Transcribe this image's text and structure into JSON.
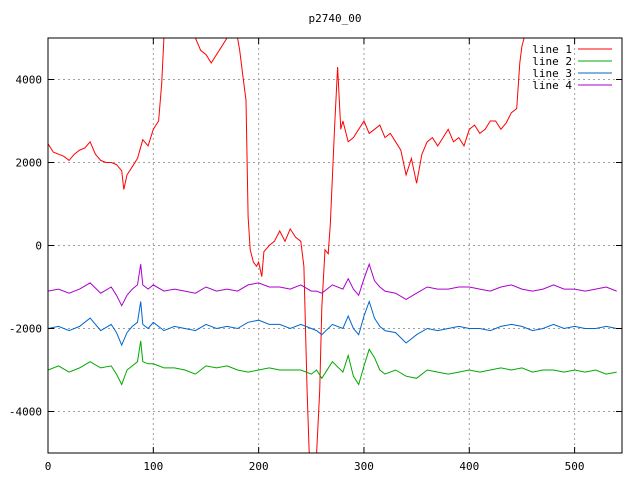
{
  "chart_data": {
    "type": "line",
    "title": "p2740_00",
    "xlabel": "",
    "ylabel": "",
    "xlim": [
      0,
      545
    ],
    "ylim": [
      -5000,
      5000
    ],
    "xticks": [
      0,
      100,
      200,
      300,
      400,
      500
    ],
    "yticks": [
      -4000,
      -2000,
      0,
      2000,
      4000
    ],
    "grid": true,
    "legend_position": "top-right",
    "series": [
      {
        "name": "line 1",
        "color": "#ff0000",
        "points": [
          [
            0,
            2450
          ],
          [
            5,
            2250
          ],
          [
            10,
            2200
          ],
          [
            15,
            2150
          ],
          [
            20,
            2050
          ],
          [
            25,
            2200
          ],
          [
            30,
            2300
          ],
          [
            35,
            2350
          ],
          [
            40,
            2500
          ],
          [
            45,
            2200
          ],
          [
            50,
            2050
          ],
          [
            55,
            2000
          ],
          [
            60,
            2000
          ],
          [
            65,
            1950
          ],
          [
            70,
            1800
          ],
          [
            72,
            1350
          ],
          [
            75,
            1700
          ],
          [
            80,
            1900
          ],
          [
            85,
            2100
          ],
          [
            90,
            2550
          ],
          [
            95,
            2400
          ],
          [
            100,
            2800
          ],
          [
            105,
            3000
          ],
          [
            108,
            3900
          ],
          [
            110,
            5000
          ],
          [
            140,
            5000
          ],
          [
            145,
            4700
          ],
          [
            150,
            4600
          ],
          [
            155,
            4400
          ],
          [
            160,
            4600
          ],
          [
            165,
            4800
          ],
          [
            170,
            5000
          ],
          [
            180,
            5000
          ],
          [
            182,
            4700
          ],
          [
            185,
            4100
          ],
          [
            188,
            3500
          ],
          [
            190,
            700
          ],
          [
            192,
            -100
          ],
          [
            195,
            -400
          ],
          [
            198,
            -500
          ],
          [
            200,
            -400
          ],
          [
            203,
            -750
          ],
          [
            205,
            -150
          ],
          [
            210,
            0
          ],
          [
            215,
            100
          ],
          [
            220,
            350
          ],
          [
            225,
            100
          ],
          [
            230,
            400
          ],
          [
            235,
            200
          ],
          [
            240,
            100
          ],
          [
            243,
            -500
          ],
          [
            246,
            -3500
          ],
          [
            248,
            -5000
          ],
          [
            255,
            -5000
          ],
          [
            258,
            -3500
          ],
          [
            260,
            -1500
          ],
          [
            263,
            -100
          ],
          [
            266,
            -200
          ],
          [
            268,
            500
          ],
          [
            272,
            2800
          ],
          [
            275,
            4300
          ],
          [
            278,
            2800
          ],
          [
            280,
            3000
          ],
          [
            285,
            2500
          ],
          [
            290,
            2600
          ],
          [
            295,
            2800
          ],
          [
            300,
            3000
          ],
          [
            305,
            2700
          ],
          [
            310,
            2800
          ],
          [
            315,
            2900
          ],
          [
            320,
            2600
          ],
          [
            325,
            2700
          ],
          [
            330,
            2500
          ],
          [
            335,
            2300
          ],
          [
            340,
            1700
          ],
          [
            345,
            2100
          ],
          [
            350,
            1500
          ],
          [
            355,
            2200
          ],
          [
            360,
            2500
          ],
          [
            365,
            2600
          ],
          [
            370,
            2400
          ],
          [
            375,
            2600
          ],
          [
            380,
            2800
          ],
          [
            385,
            2500
          ],
          [
            390,
            2600
          ],
          [
            395,
            2400
          ],
          [
            400,
            2800
          ],
          [
            405,
            2900
          ],
          [
            410,
            2700
          ],
          [
            415,
            2800
          ],
          [
            420,
            3000
          ],
          [
            425,
            3000
          ],
          [
            430,
            2800
          ],
          [
            435,
            2950
          ],
          [
            440,
            3200
          ],
          [
            445,
            3300
          ],
          [
            448,
            4400
          ],
          [
            450,
            4800
          ],
          [
            452,
            5000
          ],
          [
            545,
            5000
          ]
        ]
      },
      {
        "name": "line 2",
        "color": "#00aa00",
        "points": [
          [
            0,
            -3000
          ],
          [
            10,
            -2900
          ],
          [
            20,
            -3050
          ],
          [
            30,
            -2950
          ],
          [
            40,
            -2800
          ],
          [
            50,
            -2950
          ],
          [
            60,
            -2900
          ],
          [
            65,
            -3100
          ],
          [
            70,
            -3350
          ],
          [
            75,
            -3000
          ],
          [
            80,
            -2900
          ],
          [
            85,
            -2800
          ],
          [
            88,
            -2300
          ],
          [
            90,
            -2800
          ],
          [
            95,
            -2850
          ],
          [
            100,
            -2850
          ],
          [
            110,
            -2950
          ],
          [
            120,
            -2950
          ],
          [
            130,
            -3000
          ],
          [
            140,
            -3100
          ],
          [
            150,
            -2900
          ],
          [
            160,
            -2950
          ],
          [
            170,
            -2900
          ],
          [
            180,
            -3000
          ],
          [
            190,
            -3050
          ],
          [
            200,
            -3000
          ],
          [
            210,
            -2950
          ],
          [
            220,
            -3000
          ],
          [
            230,
            -3000
          ],
          [
            240,
            -3000
          ],
          [
            250,
            -3100
          ],
          [
            255,
            -3000
          ],
          [
            260,
            -3200
          ],
          [
            270,
            -2800
          ],
          [
            280,
            -3050
          ],
          [
            285,
            -2650
          ],
          [
            290,
            -3150
          ],
          [
            295,
            -3350
          ],
          [
            300,
            -2900
          ],
          [
            305,
            -2500
          ],
          [
            310,
            -2700
          ],
          [
            315,
            -3000
          ],
          [
            320,
            -3100
          ],
          [
            330,
            -3000
          ],
          [
            340,
            -3150
          ],
          [
            350,
            -3200
          ],
          [
            360,
            -3000
          ],
          [
            370,
            -3050
          ],
          [
            380,
            -3100
          ],
          [
            390,
            -3050
          ],
          [
            400,
            -3000
          ],
          [
            410,
            -3050
          ],
          [
            420,
            -3000
          ],
          [
            430,
            -2950
          ],
          [
            440,
            -3000
          ],
          [
            450,
            -2950
          ],
          [
            460,
            -3050
          ],
          [
            470,
            -3000
          ],
          [
            480,
            -3000
          ],
          [
            490,
            -3050
          ],
          [
            500,
            -3000
          ],
          [
            510,
            -3050
          ],
          [
            520,
            -3000
          ],
          [
            530,
            -3100
          ],
          [
            540,
            -3050
          ]
        ]
      },
      {
        "name": "line 3",
        "color": "#0066cc",
        "points": [
          [
            0,
            -2000
          ],
          [
            10,
            -1950
          ],
          [
            20,
            -2050
          ],
          [
            30,
            -1950
          ],
          [
            40,
            -1750
          ],
          [
            50,
            -2050
          ],
          [
            60,
            -1900
          ],
          [
            65,
            -2100
          ],
          [
            70,
            -2400
          ],
          [
            75,
            -2100
          ],
          [
            80,
            -1950
          ],
          [
            85,
            -1850
          ],
          [
            88,
            -1350
          ],
          [
            90,
            -1900
          ],
          [
            95,
            -2000
          ],
          [
            100,
            -1850
          ],
          [
            110,
            -2050
          ],
          [
            120,
            -1950
          ],
          [
            130,
            -2000
          ],
          [
            140,
            -2050
          ],
          [
            150,
            -1900
          ],
          [
            160,
            -2000
          ],
          [
            170,
            -1950
          ],
          [
            180,
            -2000
          ],
          [
            190,
            -1850
          ],
          [
            200,
            -1800
          ],
          [
            210,
            -1900
          ],
          [
            220,
            -1900
          ],
          [
            230,
            -2000
          ],
          [
            240,
            -1900
          ],
          [
            250,
            -2000
          ],
          [
            255,
            -2050
          ],
          [
            260,
            -2150
          ],
          [
            270,
            -1900
          ],
          [
            280,
            -2000
          ],
          [
            285,
            -1700
          ],
          [
            290,
            -2000
          ],
          [
            295,
            -2150
          ],
          [
            300,
            -1700
          ],
          [
            305,
            -1350
          ],
          [
            310,
            -1750
          ],
          [
            315,
            -1950
          ],
          [
            320,
            -2050
          ],
          [
            330,
            -2100
          ],
          [
            340,
            -2350
          ],
          [
            350,
            -2150
          ],
          [
            360,
            -2000
          ],
          [
            370,
            -2050
          ],
          [
            380,
            -2000
          ],
          [
            390,
            -1950
          ],
          [
            400,
            -2000
          ],
          [
            410,
            -2000
          ],
          [
            420,
            -2050
          ],
          [
            430,
            -1950
          ],
          [
            440,
            -1900
          ],
          [
            450,
            -1950
          ],
          [
            460,
            -2050
          ],
          [
            470,
            -2000
          ],
          [
            480,
            -1900
          ],
          [
            490,
            -2000
          ],
          [
            500,
            -1950
          ],
          [
            510,
            -2000
          ],
          [
            520,
            -2000
          ],
          [
            530,
            -1950
          ],
          [
            540,
            -2000
          ]
        ]
      },
      {
        "name": "line 4",
        "color": "#aa00cc",
        "points": [
          [
            0,
            -1100
          ],
          [
            10,
            -1050
          ],
          [
            20,
            -1150
          ],
          [
            30,
            -1050
          ],
          [
            40,
            -900
          ],
          [
            50,
            -1150
          ],
          [
            60,
            -1000
          ],
          [
            65,
            -1200
          ],
          [
            70,
            -1450
          ],
          [
            75,
            -1200
          ],
          [
            80,
            -1050
          ],
          [
            85,
            -950
          ],
          [
            88,
            -450
          ],
          [
            90,
            -950
          ],
          [
            95,
            -1050
          ],
          [
            100,
            -950
          ],
          [
            110,
            -1100
          ],
          [
            120,
            -1050
          ],
          [
            130,
            -1100
          ],
          [
            140,
            -1150
          ],
          [
            150,
            -1000
          ],
          [
            160,
            -1100
          ],
          [
            170,
            -1050
          ],
          [
            180,
            -1100
          ],
          [
            190,
            -950
          ],
          [
            200,
            -900
          ],
          [
            210,
            -1000
          ],
          [
            220,
            -1000
          ],
          [
            230,
            -1050
          ],
          [
            240,
            -950
          ],
          [
            250,
            -1100
          ],
          [
            255,
            -1100
          ],
          [
            260,
            -1150
          ],
          [
            270,
            -950
          ],
          [
            280,
            -1050
          ],
          [
            285,
            -800
          ],
          [
            290,
            -1050
          ],
          [
            295,
            -1200
          ],
          [
            300,
            -800
          ],
          [
            305,
            -450
          ],
          [
            310,
            -850
          ],
          [
            315,
            -1000
          ],
          [
            320,
            -1100
          ],
          [
            330,
            -1150
          ],
          [
            340,
            -1300
          ],
          [
            350,
            -1150
          ],
          [
            360,
            -1000
          ],
          [
            370,
            -1050
          ],
          [
            380,
            -1050
          ],
          [
            390,
            -1000
          ],
          [
            400,
            -1000
          ],
          [
            410,
            -1050
          ],
          [
            420,
            -1100
          ],
          [
            430,
            -1000
          ],
          [
            440,
            -950
          ],
          [
            450,
            -1050
          ],
          [
            460,
            -1100
          ],
          [
            470,
            -1050
          ],
          [
            480,
            -950
          ],
          [
            490,
            -1050
          ],
          [
            500,
            -1050
          ],
          [
            510,
            -1100
          ],
          [
            520,
            -1050
          ],
          [
            530,
            -1000
          ],
          [
            540,
            -1100
          ]
        ]
      }
    ]
  }
}
